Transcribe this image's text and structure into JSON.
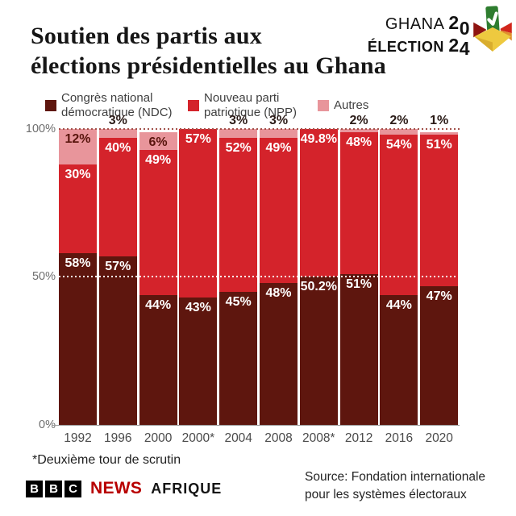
{
  "header": {
    "title_line1": "Soutien des partis aux",
    "title_line2": "élections présidentielles au Ghana",
    "logo": {
      "country": "GHANA",
      "election_word": "ÉLECTION",
      "digits": [
        "2",
        "0",
        "2",
        "4"
      ]
    }
  },
  "legend": {
    "items": [
      {
        "label": "Congrès national\ndémocratique (NDC)",
        "color": "#5e160e"
      },
      {
        "label": "Nouveau parti\npatriotique (NPP)",
        "color": "#d4232b"
      },
      {
        "label": "Autres",
        "color": "#e8959b"
      }
    ]
  },
  "chart_data": {
    "type": "bar",
    "stacked": true,
    "title": "Soutien des partis aux élections présidentielles au Ghana",
    "categories": [
      "1992",
      "1996",
      "2000",
      "2000*",
      "2004",
      "2008",
      "2008*",
      "2012",
      "2016",
      "2020"
    ],
    "series": [
      {
        "name": "Congrès national démocratique (NDC)",
        "color": "#5e160e",
        "values": [
          58,
          57,
          44,
          43,
          45,
          48,
          50.2,
          51,
          44,
          47
        ],
        "labels": [
          "58%",
          "57%",
          "44%",
          "43%",
          "45%",
          "48%",
          "50.2%",
          "51%",
          "44%",
          "47%"
        ]
      },
      {
        "name": "Nouveau parti patriotique (NPP)",
        "color": "#d4232b",
        "values": [
          30,
          40,
          49,
          57,
          52,
          49,
          49.8,
          48,
          54,
          51
        ],
        "labels": [
          "30%",
          "40%",
          "49%",
          "57%",
          "52%",
          "49%",
          "49.8%",
          "48%",
          "54%",
          "51%"
        ]
      },
      {
        "name": "Autres",
        "color": "#e8959b",
        "values": [
          12,
          3,
          6,
          0,
          3,
          3,
          0,
          2,
          2,
          1
        ],
        "labels": [
          "12%",
          "3%",
          "6%",
          "",
          "3%",
          "3%",
          "",
          "2%",
          "2%",
          "1%"
        ]
      }
    ],
    "yticks": [
      "100%",
      "50%",
      "0%"
    ],
    "ylim": [
      0,
      100
    ],
    "legend_position": "top",
    "grid": "dotted lines at 50% and 100%"
  },
  "footnote": "*Deuxième tour de scrutin",
  "source": {
    "line1": "Source: Fondation internationale",
    "line2": "pour les systèmes électoraux"
  },
  "footer_logo": {
    "blocks": [
      "B",
      "B",
      "C"
    ],
    "news": "NEWS",
    "region": "AFRIQUE",
    "news_color": "#b80000"
  }
}
